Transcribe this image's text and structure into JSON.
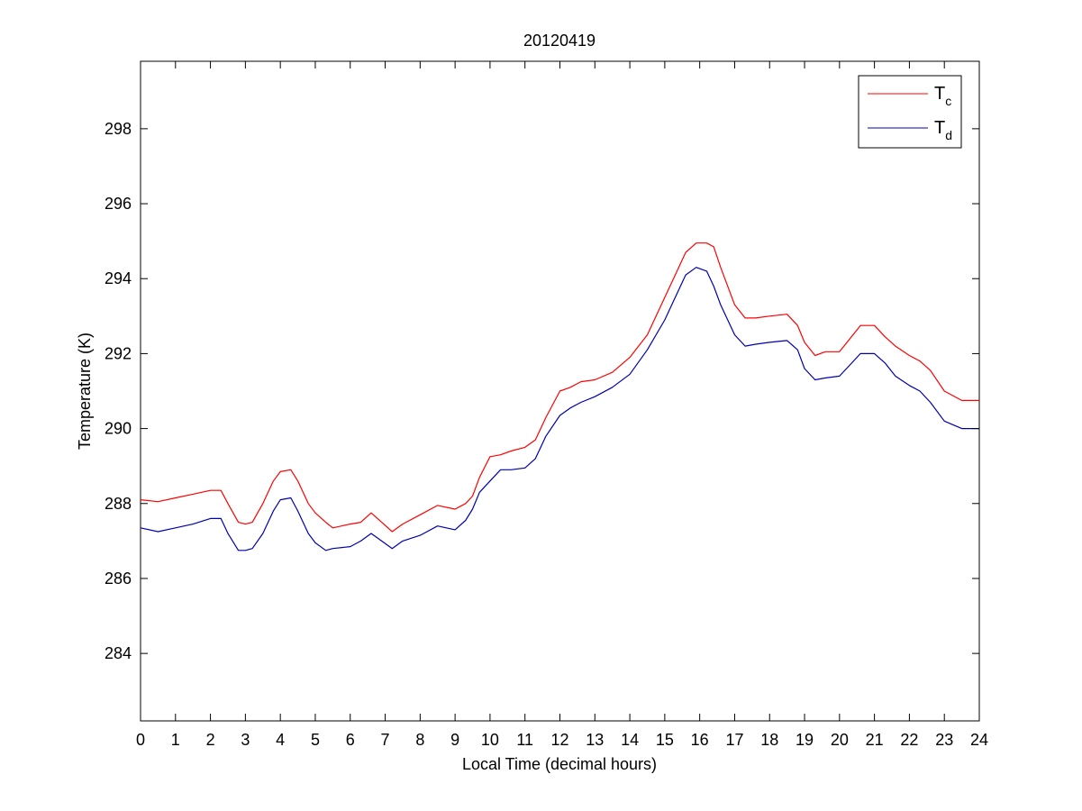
{
  "chart_data": {
    "type": "line",
    "title": "20120419",
    "xlabel": "Local Time (decimal hours)",
    "ylabel": "Temperature (K)",
    "xlim": [
      0,
      24
    ],
    "ylim": [
      282.2,
      299.8
    ],
    "x_ticks": [
      "0",
      "1",
      "2",
      "3",
      "4",
      "5",
      "6",
      "7",
      "8",
      "9",
      "10",
      "11",
      "12",
      "13",
      "14",
      "15",
      "16",
      "17",
      "18",
      "19",
      "20",
      "21",
      "22",
      "23",
      "24"
    ],
    "y_ticks": [
      "284",
      "286",
      "288",
      "290",
      "292",
      "294",
      "296",
      "298"
    ],
    "grid": false,
    "legend": {
      "position": "top-right",
      "entries": [
        {
          "base": "T",
          "sub": "c"
        },
        {
          "base": "T",
          "sub": "d"
        }
      ]
    },
    "series": [
      {
        "name": "Tc",
        "color": "#ff0000",
        "x": [
          0,
          0.5,
          1,
          1.5,
          2,
          2.3,
          2.5,
          2.8,
          3.0,
          3.2,
          3.5,
          3.8,
          4.0,
          4.3,
          4.5,
          4.8,
          5.0,
          5.3,
          5.5,
          6.0,
          6.3,
          6.6,
          6.9,
          7.2,
          7.5,
          8.0,
          8.5,
          9.0,
          9.3,
          9.5,
          9.7,
          10.0,
          10.3,
          10.6,
          11.0,
          11.3,
          11.6,
          12.0,
          12.3,
          12.6,
          13.0,
          13.5,
          14.0,
          14.5,
          15.0,
          15.3,
          15.6,
          15.9,
          16.2,
          16.4,
          16.6,
          17.0,
          17.3,
          17.6,
          18.0,
          18.5,
          18.8,
          19.0,
          19.3,
          19.6,
          20.0,
          20.3,
          20.6,
          21.0,
          21.3,
          21.6,
          22.0,
          22.3,
          22.6,
          23.0,
          23.5,
          24.0
        ],
        "values": [
          288.1,
          288.05,
          288.15,
          288.25,
          288.35,
          288.35,
          288.0,
          287.5,
          287.45,
          287.5,
          288.0,
          288.6,
          288.85,
          288.9,
          288.6,
          288.0,
          287.75,
          287.5,
          287.35,
          287.45,
          287.5,
          287.75,
          287.5,
          287.25,
          287.45,
          287.7,
          287.95,
          287.85,
          288.0,
          288.2,
          288.7,
          289.25,
          289.3,
          289.4,
          289.5,
          289.7,
          290.3,
          291.0,
          291.1,
          291.25,
          291.3,
          291.5,
          291.9,
          292.5,
          293.5,
          294.1,
          294.7,
          294.95,
          294.95,
          294.85,
          294.3,
          293.3,
          292.95,
          292.95,
          293.0,
          293.05,
          292.75,
          292.3,
          291.95,
          292.05,
          292.05,
          292.4,
          292.75,
          292.75,
          292.45,
          292.2,
          291.95,
          291.8,
          291.55,
          291.0,
          290.75,
          290.75
        ]
      },
      {
        "name": "Td",
        "color": "#0000b0",
        "x": [
          0,
          0.5,
          1,
          1.5,
          2,
          2.3,
          2.5,
          2.8,
          3.0,
          3.2,
          3.5,
          3.8,
          4.0,
          4.3,
          4.5,
          4.8,
          5.0,
          5.3,
          5.5,
          6.0,
          6.3,
          6.6,
          6.9,
          7.2,
          7.5,
          8.0,
          8.5,
          9.0,
          9.3,
          9.5,
          9.7,
          10.0,
          10.3,
          10.6,
          11.0,
          11.3,
          11.6,
          12.0,
          12.3,
          12.6,
          13.0,
          13.5,
          14.0,
          14.5,
          15.0,
          15.3,
          15.6,
          15.9,
          16.2,
          16.4,
          16.6,
          17.0,
          17.3,
          17.6,
          18.0,
          18.5,
          18.8,
          19.0,
          19.3,
          19.6,
          20.0,
          20.3,
          20.6,
          21.0,
          21.3,
          21.6,
          22.0,
          22.3,
          22.6,
          23.0,
          23.5,
          24.0
        ],
        "values": [
          287.35,
          287.25,
          287.35,
          287.45,
          287.6,
          287.6,
          287.2,
          286.75,
          286.75,
          286.8,
          287.2,
          287.8,
          288.1,
          288.15,
          287.8,
          287.2,
          286.95,
          286.75,
          286.8,
          286.85,
          287.0,
          287.2,
          287.0,
          286.8,
          287.0,
          287.15,
          287.4,
          287.3,
          287.55,
          287.85,
          288.3,
          288.6,
          288.9,
          288.9,
          288.95,
          289.2,
          289.8,
          290.35,
          290.55,
          290.7,
          290.85,
          291.1,
          291.45,
          292.1,
          292.9,
          293.5,
          294.1,
          294.3,
          294.2,
          293.8,
          293.3,
          292.5,
          292.2,
          292.25,
          292.3,
          292.35,
          292.1,
          291.6,
          291.3,
          291.35,
          291.4,
          291.7,
          292.0,
          292.0,
          291.75,
          291.4,
          291.15,
          291.0,
          290.7,
          290.2,
          290.0,
          290.0
        ]
      }
    ]
  }
}
